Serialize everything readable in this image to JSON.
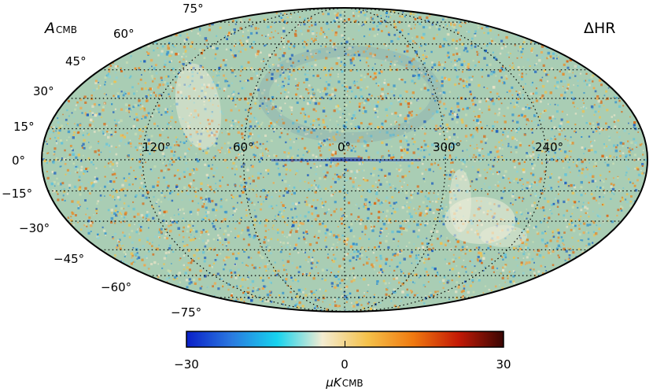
{
  "chart_data": {
    "type": "heatmap",
    "projection": "mollweide",
    "title_left": "A",
    "title_left_sub": "CMB",
    "title_right": "ΔHR",
    "longitude_labels": [
      "120°",
      "60°",
      "0°",
      "300°",
      "240°"
    ],
    "longitude_values": [
      120,
      60,
      0,
      300,
      240
    ],
    "latitude_labels_upper": [
      "75°",
      "60°",
      "45°",
      "30°",
      "15°",
      "0°"
    ],
    "latitude_labels_lower": [
      "−15°",
      "−30°",
      "−45°",
      "−60°",
      "−75°"
    ],
    "latitude_values": [
      75,
      60,
      45,
      30,
      15,
      0,
      -15,
      -30,
      -45,
      -60,
      -75
    ],
    "grid": true,
    "colorbar": {
      "min": -30,
      "max": 30,
      "ticks": [
        "−30",
        "0",
        "30"
      ],
      "label_main": "μK",
      "label_sub": "CMB",
      "colors": [
        "#0a1fc8",
        "#2a7ae0",
        "#16d3ee",
        "#f3ecd2",
        "#f5c14a",
        "#f07a10",
        "#c41a06",
        "#3a0604"
      ]
    }
  }
}
